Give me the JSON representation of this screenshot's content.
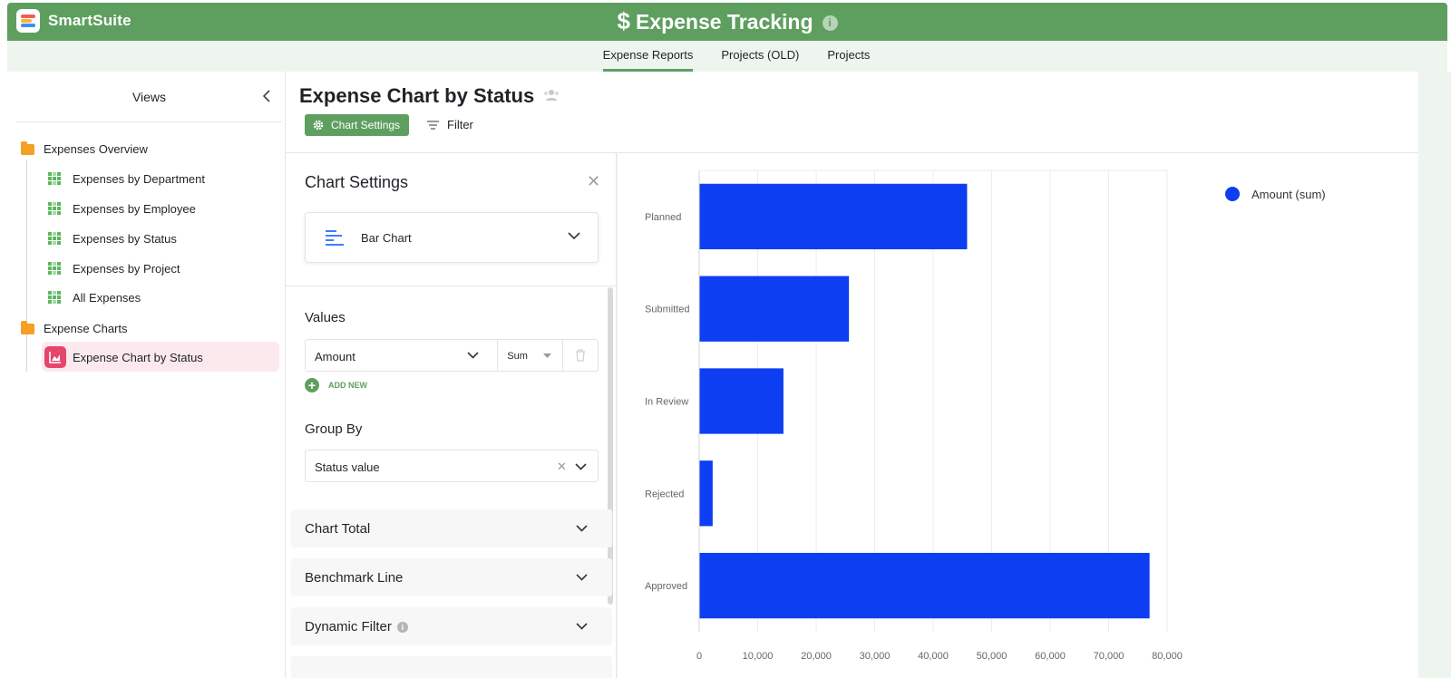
{
  "header": {
    "brand": "SmartSuite",
    "title": "Expense Tracking",
    "title_icon": "dollar-icon",
    "info_icon": "info-icon"
  },
  "tabs": [
    {
      "label": "Expense Reports",
      "active": true
    },
    {
      "label": "Projects (OLD)",
      "active": false
    },
    {
      "label": "Projects",
      "active": false
    }
  ],
  "sidebar": {
    "title": "Views",
    "folders": [
      {
        "label": "Expenses Overview",
        "items": [
          {
            "label": "Expenses by Department",
            "icon": "grid-view-icon"
          },
          {
            "label": "Expenses by Employee",
            "icon": "grid-view-icon"
          },
          {
            "label": "Expenses by Status",
            "icon": "grid-view-icon"
          },
          {
            "label": "Expenses by Project",
            "icon": "grid-view-icon"
          },
          {
            "label": "All Expenses",
            "icon": "grid-view-icon"
          }
        ]
      },
      {
        "label": "Expense Charts",
        "items": [
          {
            "label": "Expense Chart by Status",
            "icon": "chart-view-icon",
            "selected": true
          }
        ]
      }
    ]
  },
  "main": {
    "title": "Expense Chart by Status",
    "chart_settings_button": "Chart Settings",
    "filter_button": "Filter"
  },
  "settings_panel": {
    "title": "Chart Settings",
    "chart_type": "Bar Chart",
    "values_label": "Values",
    "values_field": "Amount",
    "values_aggregation": "Sum",
    "add_new": "ADD NEW",
    "group_by_label": "Group By",
    "group_by_field": "Status value",
    "sections": [
      "Chart Total",
      "Benchmark Line",
      "Dynamic Filter"
    ]
  },
  "colors": {
    "brand_green": "#5e9f60",
    "bar_blue": "#0d3ef2",
    "selected_bg": "#fbe9ee"
  },
  "chart_data": {
    "type": "bar",
    "orientation": "horizontal",
    "categories": [
      "Planned",
      "Submitted",
      "In Review",
      "Rejected",
      "Approved"
    ],
    "series": [
      {
        "name": "Amount (sum)",
        "values": [
          45800,
          25600,
          14400,
          2300,
          77000
        ]
      }
    ],
    "xlim": [
      0,
      80000
    ],
    "x_ticks": [
      "0",
      "10,000",
      "20,000",
      "30,000",
      "40,000",
      "50,000",
      "60,000",
      "70,000",
      "80,000"
    ],
    "grid": true,
    "legend_position": "top-right"
  }
}
